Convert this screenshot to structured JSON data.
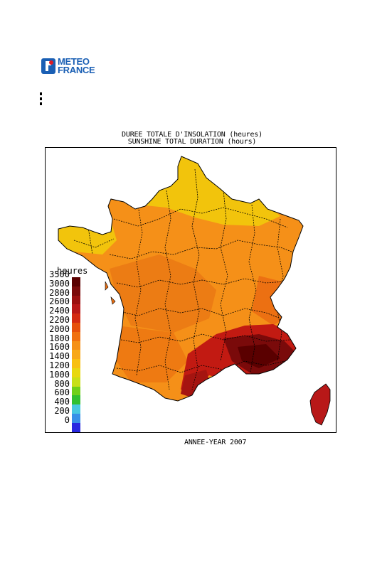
{
  "logo": {
    "line1": "METEO",
    "line2": "FRANCE"
  },
  "title": {
    "line1": "DUREE TOTALE D'INSOLATION (heures)",
    "line2": "SUNSHINE TOTAL DURATION (hours)"
  },
  "legend": {
    "unit": "heures",
    "items": [
      {
        "label": "3500",
        "color": "#5a0000"
      },
      {
        "label": "3000",
        "color": "#7a0a0a"
      },
      {
        "label": "2800",
        "color": "#9a1010"
      },
      {
        "label": "2600",
        "color": "#b81818"
      },
      {
        "label": "2400",
        "color": "#d42a12"
      },
      {
        "label": "2200",
        "color": "#e6500c"
      },
      {
        "label": "2000",
        "color": "#f07010"
      },
      {
        "label": "1800",
        "color": "#f59018"
      },
      {
        "label": "1600",
        "color": "#f8a818"
      },
      {
        "label": "1400",
        "color": "#f8c010"
      },
      {
        "label": "1200",
        "color": "#e8d810"
      },
      {
        "label": "1000",
        "color": "#c8e018"
      },
      {
        "label": "800",
        "color": "#70d018"
      },
      {
        "label": "600",
        "color": "#30c030"
      },
      {
        "label": "400",
        "color": "#48c8e0"
      },
      {
        "label": "200",
        "color": "#3890e8"
      },
      {
        "label": "0",
        "color": "#2828e0"
      }
    ]
  },
  "year_label": "ANNEE-YEAR 2007",
  "colors": {
    "yellow_north": "#f2c40c",
    "orange_main": "#f59018",
    "orange_dark": "#ec7012",
    "red_south": "#c21a12",
    "dark_red": "#7a0a0a",
    "logo_blue": "#1a5fb4"
  }
}
